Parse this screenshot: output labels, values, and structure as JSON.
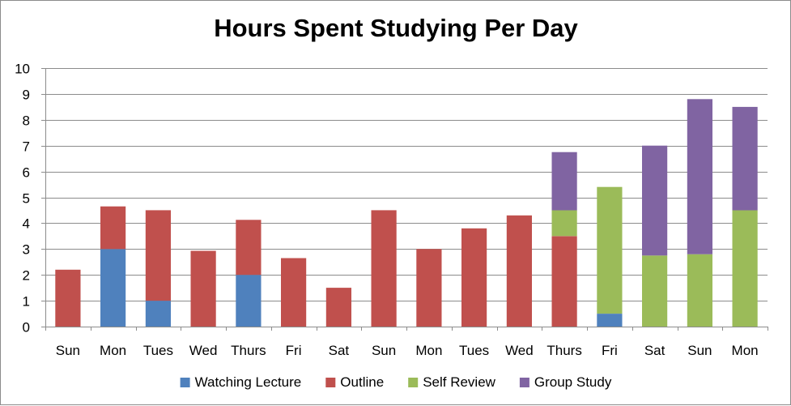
{
  "chart_data": {
    "type": "bar",
    "stacked": true,
    "title": "Hours Spent Studying Per Day",
    "xlabel": "",
    "ylabel": "",
    "ylim": [
      0,
      10
    ],
    "yticks": [
      0,
      1,
      2,
      3,
      4,
      5,
      6,
      7,
      8,
      9,
      10
    ],
    "grid": true,
    "legend_position": "bottom",
    "categories": [
      "Sun",
      "Mon",
      "Tues",
      "Wed",
      "Thurs",
      "Fri",
      "Sat",
      "Sun",
      "Mon",
      "Tues",
      "Wed",
      "Thurs",
      "Fri",
      "Sat",
      "Sun",
      "Mon"
    ],
    "series": [
      {
        "name": "Watching Lecture",
        "color": "#4f81bd",
        "values": [
          0,
          3,
          1,
          0,
          2,
          0,
          0,
          0,
          0,
          0,
          0,
          0,
          0.5,
          0,
          0,
          0
        ]
      },
      {
        "name": "Outline",
        "color": "#c0504d",
        "values": [
          2.2,
          1.65,
          3.5,
          2.93,
          2.13,
          2.65,
          1.5,
          4.5,
          3.0,
          3.8,
          4.3,
          3.5,
          0,
          0,
          0,
          0
        ]
      },
      {
        "name": "Self Review",
        "color": "#9bbb59",
        "values": [
          0,
          0,
          0,
          0,
          0,
          0,
          0,
          0,
          0,
          0,
          0,
          1.0,
          4.9,
          2.75,
          2.8,
          4.5
        ]
      },
      {
        "name": "Group Study",
        "color": "#8064a2",
        "values": [
          0,
          0,
          0,
          0,
          0,
          0,
          0,
          0,
          0,
          0,
          0,
          2.25,
          0,
          4.25,
          6.0,
          4.0
        ]
      }
    ]
  }
}
